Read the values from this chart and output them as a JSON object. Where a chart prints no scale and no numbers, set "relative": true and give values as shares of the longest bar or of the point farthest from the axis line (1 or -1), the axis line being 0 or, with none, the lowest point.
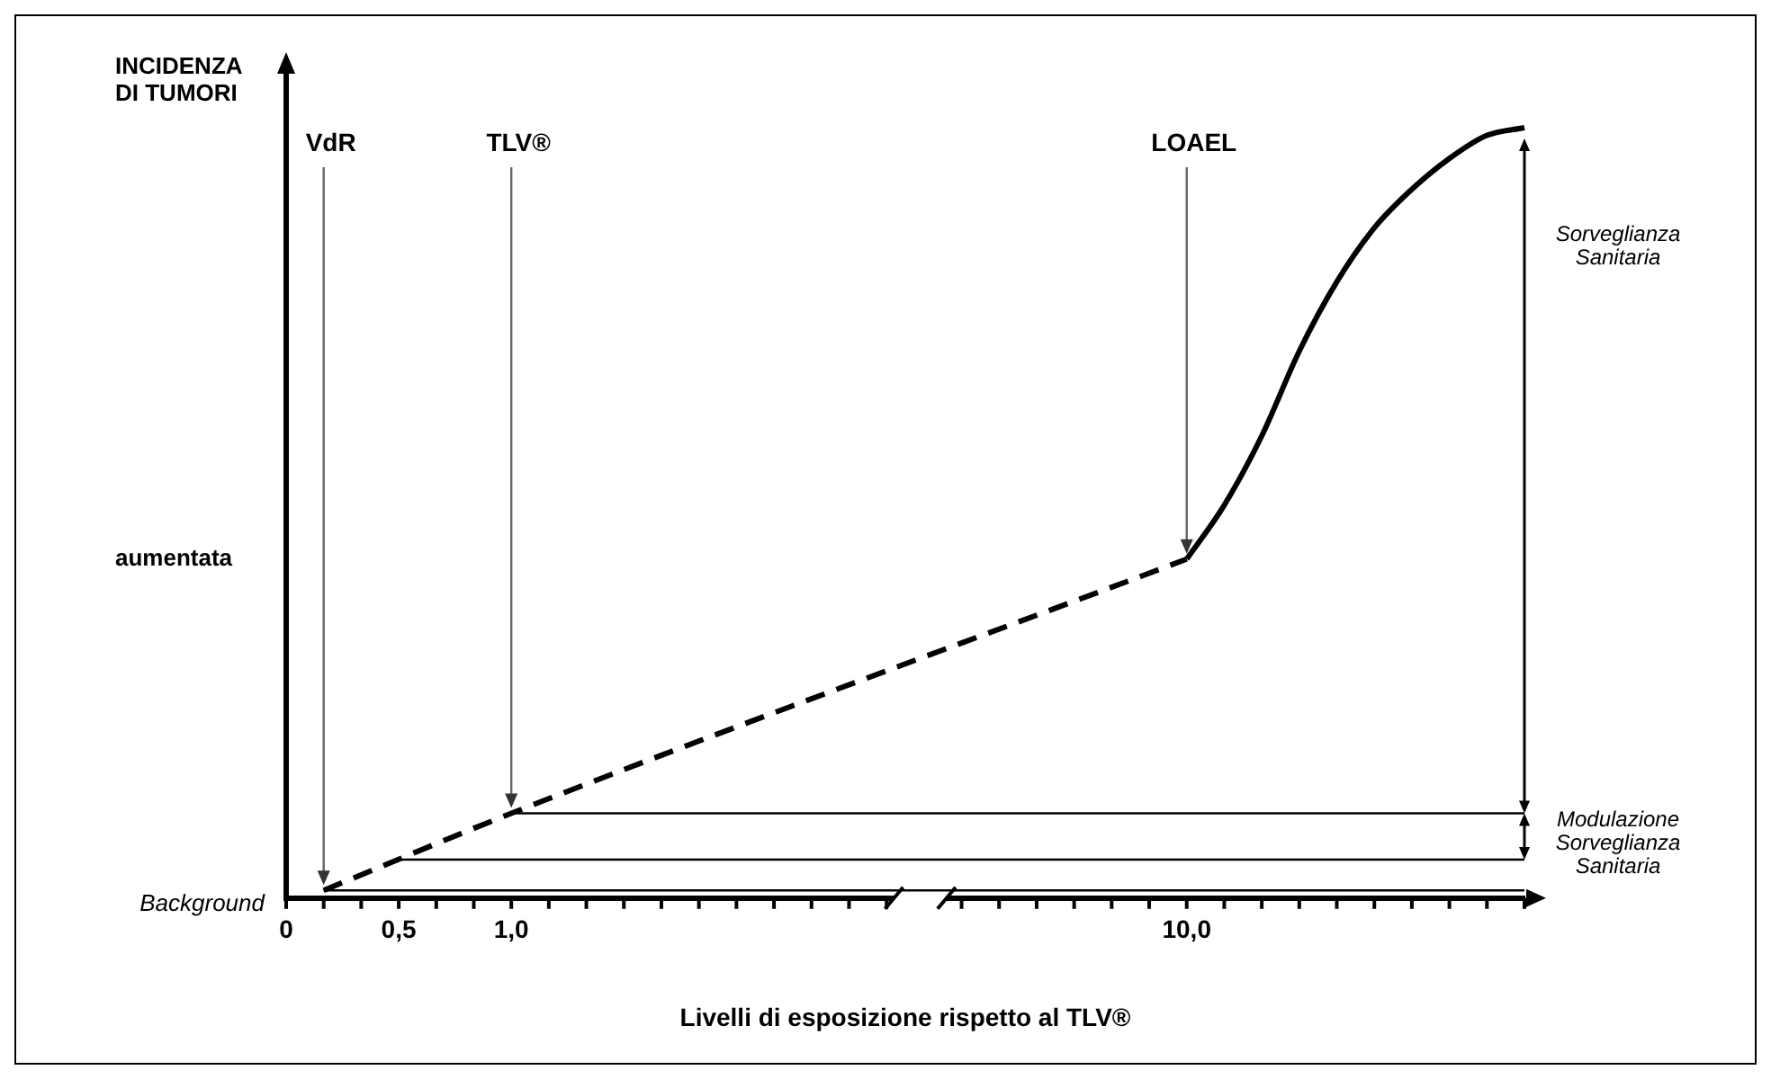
{
  "chart_data": {
    "type": "line",
    "relative": true,
    "ylabel": "INCIDENZA DI TUMORI",
    "xlabel": "Livelli di esposizione rispetto al TLV®",
    "categories": [
      "0",
      null,
      null,
      "0,5",
      null,
      null,
      "1,0",
      null,
      null,
      null,
      null,
      null,
      null,
      null,
      null,
      null,
      null,
      null,
      null,
      null,
      null,
      null,
      null,
      null,
      "10,0",
      null,
      null,
      null,
      null,
      null,
      null,
      null,
      null,
      null
    ],
    "series": [
      {
        "color": "#000000",
        "line_style": "dashed",
        "values": [
          null,
          0.01,
          null,
          null,
          null,
          null,
          0.11,
          null,
          null,
          null,
          null,
          null,
          null,
          null,
          null,
          null,
          null,
          null,
          null,
          null,
          null,
          null,
          null,
          null,
          0.44,
          null,
          null,
          null,
          null,
          null,
          null,
          null,
          null,
          null
        ]
      },
      {
        "color": "#000000",
        "line_style": "solid",
        "values": [
          null,
          null,
          null,
          null,
          null,
          null,
          null,
          null,
          null,
          null,
          null,
          null,
          null,
          null,
          null,
          null,
          null,
          null,
          null,
          null,
          null,
          null,
          null,
          null,
          0.44,
          0.51,
          0.6,
          0.71,
          0.8,
          0.87,
          0.92,
          0.96,
          0.99,
          1
        ]
      }
    ],
    "annotations": [
      "VdR",
      "TLV®",
      "LOAEL",
      "Sorveglianza Sanitaria",
      "Modulazione Sorveglianza Sanitaria",
      "aumentata"
    ],
    "ref_lines": [
      {
        "axis": "y",
        "value": 0.01,
        "label": "Background"
      },
      {
        "axis": "y",
        "value": 0.05
      },
      {
        "axis": "y",
        "value": 0.11
      }
    ],
    "legend": false,
    "marker": "none"
  }
}
